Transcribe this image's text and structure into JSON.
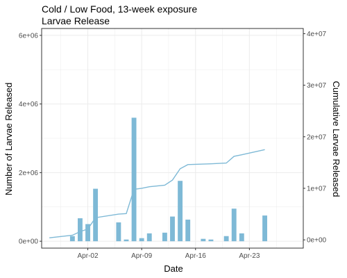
{
  "chart_data": {
    "type": "bar",
    "title": "Cold / Low Food, 13-week exposure",
    "subtitle": "Larvae Release",
    "xlabel": "Date",
    "ylabel": "Number of Larvae Released",
    "y2label": "Cumulative Larvae Released",
    "grid": true,
    "colors": {
      "bar": "#7eb9d6",
      "line": "#7eb9d6",
      "panel_border": "#333333",
      "grid": "#ebebeb"
    },
    "x_axis": {
      "range": [
        "2024-03-27",
        "2024-04-30"
      ],
      "ticks": [
        {
          "date": "2024-04-02",
          "label": "Apr-02"
        },
        {
          "date": "2024-04-09",
          "label": "Apr-09"
        },
        {
          "date": "2024-04-16",
          "label": "Apr-16"
        },
        {
          "date": "2024-04-23",
          "label": "Apr-23"
        }
      ]
    },
    "y_left": {
      "range": [
        -200000,
        6200000
      ],
      "ticks": [
        {
          "value": 0,
          "label": "0e+00"
        },
        {
          "value": 2000000,
          "label": "2e+06"
        },
        {
          "value": 4000000,
          "label": "4e+06"
        },
        {
          "value": 6000000,
          "label": "6e+06"
        }
      ]
    },
    "y_right": {
      "range": [
        -1600000,
        41000000
      ],
      "ticks": [
        {
          "value": 0,
          "label": "0e+00"
        },
        {
          "value": 10000000,
          "label": "1e+07"
        },
        {
          "value": 20000000,
          "label": "2e+07"
        },
        {
          "value": 30000000,
          "label": "3e+07"
        },
        {
          "value": 40000000,
          "label": "4e+07"
        }
      ]
    },
    "bars": {
      "name": "Number of Larvae Released",
      "points": [
        {
          "date": "2024-03-31",
          "value": 150000
        },
        {
          "date": "2024-04-01",
          "value": 670000
        },
        {
          "date": "2024-04-02",
          "value": 500000
        },
        {
          "date": "2024-04-03",
          "value": 1530000
        },
        {
          "date": "2024-04-06",
          "value": 550000
        },
        {
          "date": "2024-04-07",
          "value": 50000
        },
        {
          "date": "2024-04-08",
          "value": 3600000
        },
        {
          "date": "2024-04-09",
          "value": 90000
        },
        {
          "date": "2024-04-10",
          "value": 230000
        },
        {
          "date": "2024-04-12",
          "value": 250000
        },
        {
          "date": "2024-04-13",
          "value": 720000
        },
        {
          "date": "2024-04-14",
          "value": 1760000
        },
        {
          "date": "2024-04-15",
          "value": 630000
        },
        {
          "date": "2024-04-17",
          "value": 70000
        },
        {
          "date": "2024-04-18",
          "value": 50000
        },
        {
          "date": "2024-04-20",
          "value": 150000
        },
        {
          "date": "2024-04-21",
          "value": 950000
        },
        {
          "date": "2024-04-22",
          "value": 230000
        },
        {
          "date": "2024-04-25",
          "value": 750000
        }
      ]
    },
    "line": {
      "name": "Cumulative Larvae Released",
      "points": [
        {
          "date": "2024-03-28",
          "value": 400000
        },
        {
          "date": "2024-03-31",
          "value": 900000
        },
        {
          "date": "2024-04-01",
          "value": 1600000
        },
        {
          "date": "2024-04-02",
          "value": 2100000
        },
        {
          "date": "2024-04-03",
          "value": 4300000
        },
        {
          "date": "2024-04-06",
          "value": 5000000
        },
        {
          "date": "2024-04-07",
          "value": 5100000
        },
        {
          "date": "2024-04-08",
          "value": 9800000
        },
        {
          "date": "2024-04-09",
          "value": 10000000
        },
        {
          "date": "2024-04-10",
          "value": 10300000
        },
        {
          "date": "2024-04-12",
          "value": 10600000
        },
        {
          "date": "2024-04-13",
          "value": 11600000
        },
        {
          "date": "2024-04-14",
          "value": 13800000
        },
        {
          "date": "2024-04-15",
          "value": 14600000
        },
        {
          "date": "2024-04-17",
          "value": 14700000
        },
        {
          "date": "2024-04-18",
          "value": 14750000
        },
        {
          "date": "2024-04-20",
          "value": 14900000
        },
        {
          "date": "2024-04-21",
          "value": 16200000
        },
        {
          "date": "2024-04-22",
          "value": 16500000
        },
        {
          "date": "2024-04-25",
          "value": 17500000
        }
      ]
    }
  }
}
